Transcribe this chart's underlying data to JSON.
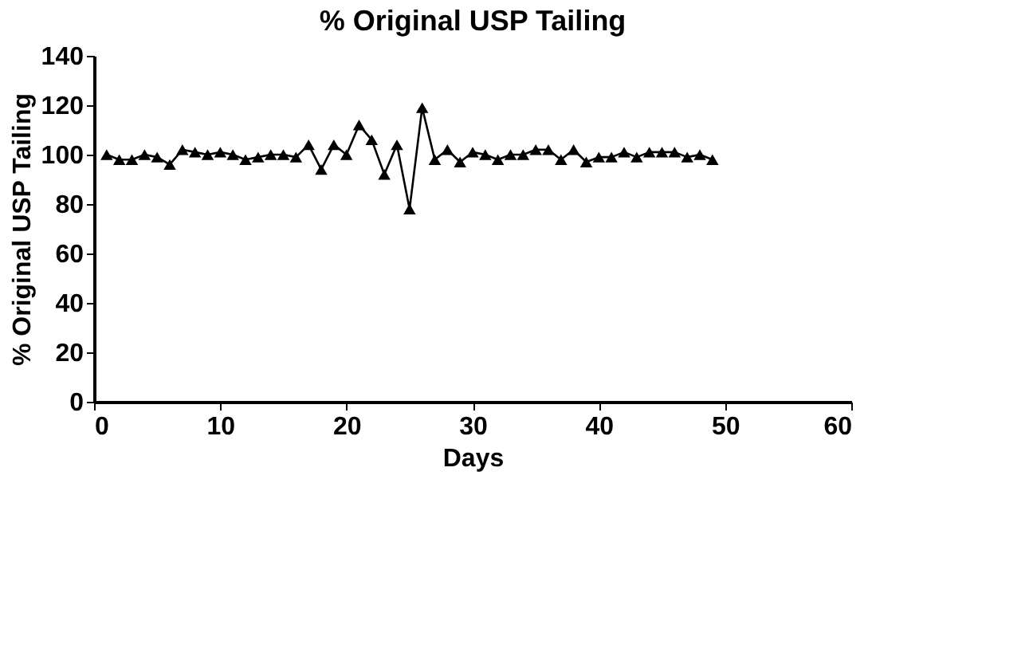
{
  "chart_data": {
    "type": "line",
    "title": "% Original USP Tailing",
    "xlabel": "Days",
    "ylabel": "% Original USP Tailing",
    "x": [
      1,
      2,
      3,
      4,
      5,
      6,
      7,
      8,
      9,
      10,
      11,
      12,
      13,
      14,
      15,
      16,
      17,
      18,
      19,
      20,
      21,
      22,
      23,
      24,
      25,
      26,
      27,
      28,
      29,
      30,
      31,
      32,
      33,
      34,
      35,
      36,
      37,
      38,
      39,
      40,
      41,
      42,
      43,
      44,
      45,
      46,
      47,
      48,
      49
    ],
    "series": [
      {
        "color": "#000000",
        "values": [
          100,
          98,
          98,
          100,
          99,
          96,
          102,
          101,
          100,
          101,
          100,
          98,
          99,
          100,
          100,
          99,
          104,
          94,
          104,
          100,
          112,
          106,
          92,
          104,
          78,
          119,
          98,
          102,
          97,
          101,
          100,
          98,
          100,
          100,
          102,
          102,
          98,
          102,
          97,
          99,
          99,
          101,
          99,
          101,
          101,
          101,
          99,
          100,
          98
        ]
      }
    ],
    "xlim": [
      0,
      60
    ],
    "xticks": [
      0,
      10,
      20,
      30,
      40,
      50,
      60
    ],
    "ylim": [
      0,
      140
    ],
    "yticks": [
      0,
      20,
      40,
      60,
      80,
      100,
      120,
      140
    ],
    "marker": "triangle",
    "line_style": "solid",
    "grid": false
  }
}
